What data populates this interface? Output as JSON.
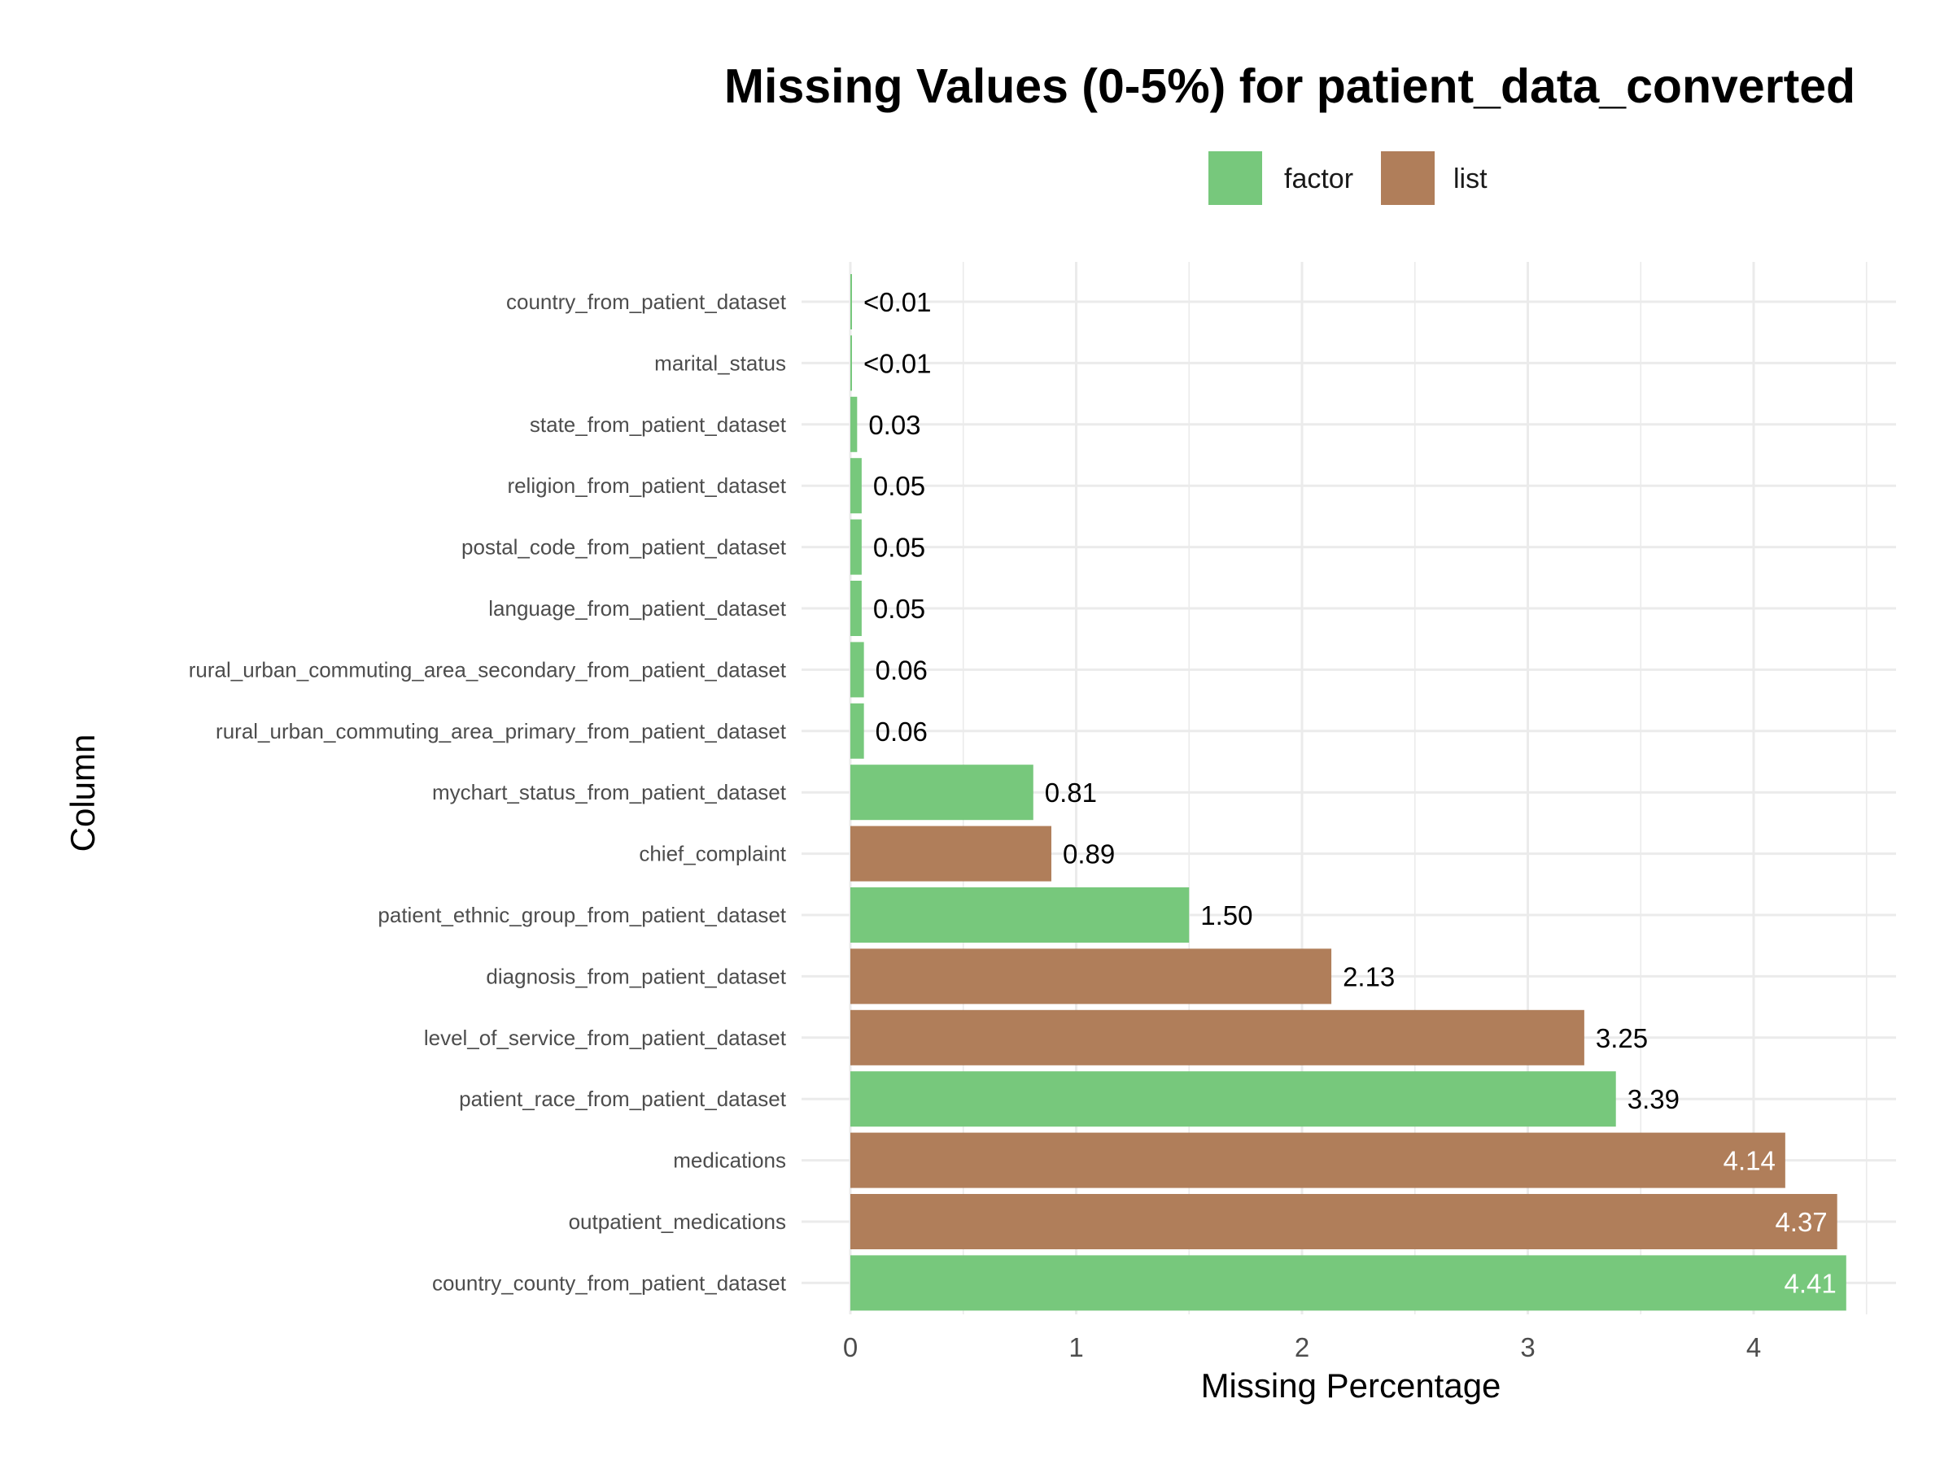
{
  "chart_data": {
    "type": "bar",
    "orientation": "horizontal",
    "title": "Missing Values (0-5%) for patient_data_converted",
    "xlabel": "Missing Percentage",
    "ylabel": "Column",
    "xlim": [
      0,
      4.63
    ],
    "x_ticks": [
      "0",
      "1",
      "2",
      "3",
      "4"
    ],
    "grid": true,
    "legend_position": "top",
    "legend": [
      {
        "name": "factor",
        "color": "#77C87C"
      },
      {
        "name": "list",
        "color": "#B07E5A"
      }
    ],
    "categories": [
      "country_from_patient_dataset",
      "marital_status",
      "state_from_patient_dataset",
      "religion_from_patient_dataset",
      "postal_code_from_patient_dataset",
      "language_from_patient_dataset",
      "rural_urban_commuting_area_secondary_from_patient_dataset",
      "rural_urban_commuting_area_primary_from_patient_dataset",
      "mychart_status_from_patient_dataset",
      "chief_complaint",
      "patient_ethnic_group_from_patient_dataset",
      "diagnosis_from_patient_dataset",
      "level_of_service_from_patient_dataset",
      "patient_race_from_patient_dataset",
      "medications",
      "outpatient_medications",
      "country_county_from_patient_dataset"
    ],
    "values": [
      0.005,
      0.005,
      0.03,
      0.05,
      0.05,
      0.05,
      0.06,
      0.06,
      0.81,
      0.89,
      1.5,
      2.13,
      3.25,
      3.39,
      4.14,
      4.37,
      4.41
    ],
    "value_labels": [
      "<0.01",
      "<0.01",
      "0.03",
      "0.05",
      "0.05",
      "0.05",
      "0.06",
      "0.06",
      "0.81",
      "0.89",
      "1.50",
      "2.13",
      "3.25",
      "3.39",
      "4.14",
      "4.37",
      "4.41"
    ],
    "types": [
      "factor",
      "factor",
      "factor",
      "factor",
      "factor",
      "factor",
      "factor",
      "factor",
      "factor",
      "list",
      "factor",
      "list",
      "list",
      "factor",
      "list",
      "list",
      "factor"
    ]
  }
}
